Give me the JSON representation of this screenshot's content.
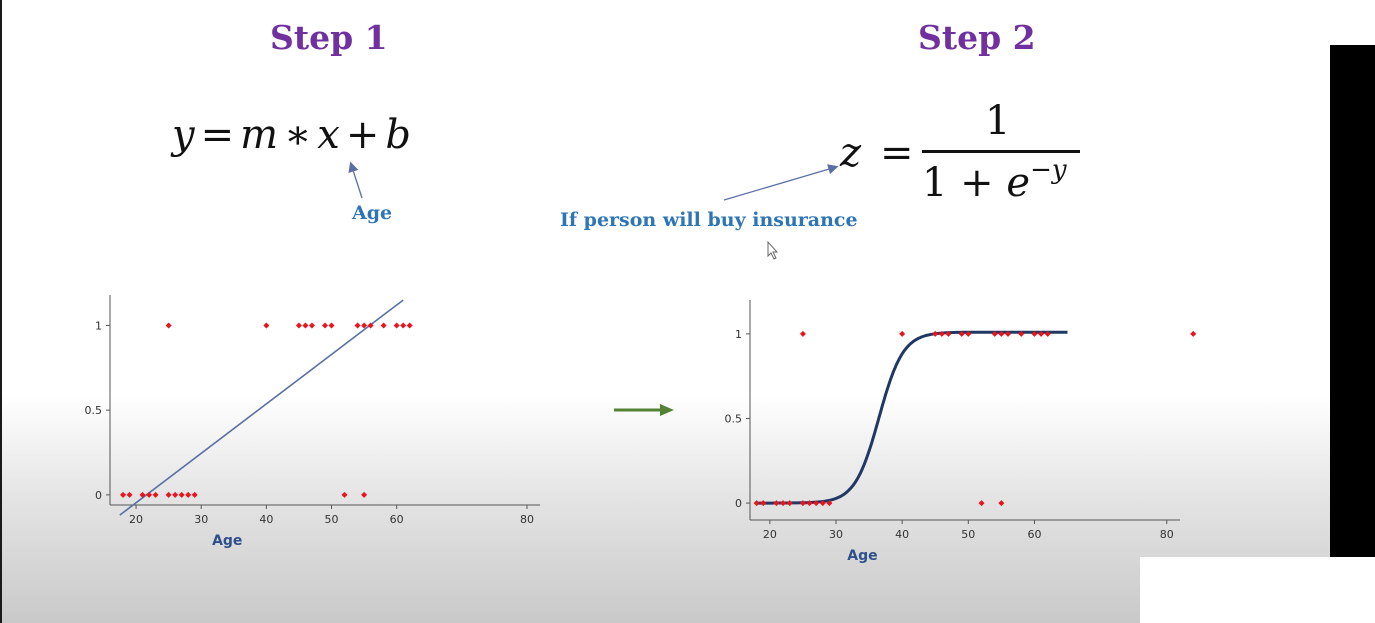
{
  "step1": {
    "title": "Step 1",
    "equation": {
      "y": "y",
      "eq": "=",
      "m": "m",
      "times": "∗",
      "x": "x",
      "plus": "+",
      "b": "b"
    },
    "annotation": "Age"
  },
  "step2": {
    "title": "Step 2",
    "equation": {
      "z": "z",
      "eq": "=",
      "numerator": "1",
      "den_prefix": "1 + ",
      "e": "e",
      "exponent": "−y"
    },
    "annotation": "If person will buy insurance"
  },
  "colors": {
    "title": "#7030a0",
    "annotation": "#2e75b6",
    "points": "#e8141e",
    "line": "#5b6fa6",
    "curve": "#1f3864",
    "arrow": "#548235"
  },
  "icons": {
    "transition": "right-arrow-icon",
    "cursor": "mouse-cursor-icon"
  },
  "chart_data": [
    {
      "type": "scatter",
      "xlabel": "Age",
      "x_ticks": [
        "20",
        "30",
        "40",
        "50",
        "60",
        "80"
      ],
      "y_ticks": [
        "0",
        "0.5",
        "1"
      ],
      "xlim": [
        16,
        82
      ],
      "ylim": [
        -0.06,
        1.18
      ],
      "series": [
        {
          "points": [
            [
              18,
              0
            ],
            [
              19,
              0
            ],
            [
              21,
              0
            ],
            [
              22,
              0
            ],
            [
              23,
              0
            ],
            [
              25,
              0
            ],
            [
              26,
              0
            ],
            [
              27,
              0
            ],
            [
              28,
              0
            ],
            [
              29,
              0
            ],
            [
              25,
              1
            ],
            [
              40,
              1
            ],
            [
              45,
              1
            ],
            [
              46,
              1
            ],
            [
              47,
              1
            ],
            [
              49,
              1
            ],
            [
              50,
              1
            ],
            [
              52,
              0
            ],
            [
              55,
              0
            ],
            [
              54,
              1
            ],
            [
              55,
              1
            ],
            [
              56,
              1
            ],
            [
              58,
              1
            ],
            [
              60,
              1
            ],
            [
              61,
              1
            ],
            [
              62,
              1
            ]
          ]
        }
      ],
      "fit": {
        "kind": "linear",
        "from": [
          17.5,
          -0.12
        ],
        "to": [
          61,
          1.15
        ]
      }
    },
    {
      "type": "scatter",
      "xlabel": "Age",
      "x_ticks": [
        "20",
        "30",
        "40",
        "50",
        "60",
        "80"
      ],
      "y_ticks": [
        "0",
        "0.5",
        "1"
      ],
      "xlim": [
        17,
        82
      ],
      "ylim": [
        -0.1,
        1.2
      ],
      "series": [
        {
          "points": [
            [
              18,
              0
            ],
            [
              19,
              0
            ],
            [
              21,
              0
            ],
            [
              22,
              0
            ],
            [
              23,
              0
            ],
            [
              25,
              0
            ],
            [
              26,
              0
            ],
            [
              27,
              0
            ],
            [
              28,
              0
            ],
            [
              29,
              0
            ],
            [
              25,
              1
            ],
            [
              40,
              1
            ],
            [
              45,
              1
            ],
            [
              46,
              1
            ],
            [
              47,
              1
            ],
            [
              49,
              1
            ],
            [
              50,
              1
            ],
            [
              52,
              0
            ],
            [
              55,
              0
            ],
            [
              54,
              1
            ],
            [
              55,
              1
            ],
            [
              56,
              1
            ],
            [
              58,
              1
            ],
            [
              60,
              1
            ],
            [
              61,
              1
            ],
            [
              62,
              1
            ],
            [
              84,
              1
            ]
          ]
        }
      ],
      "fit": {
        "kind": "sigmoid",
        "center": 36.5,
        "steepness": 0.55,
        "x_range": [
          18,
          65
        ],
        "top": 1.01
      }
    }
  ]
}
